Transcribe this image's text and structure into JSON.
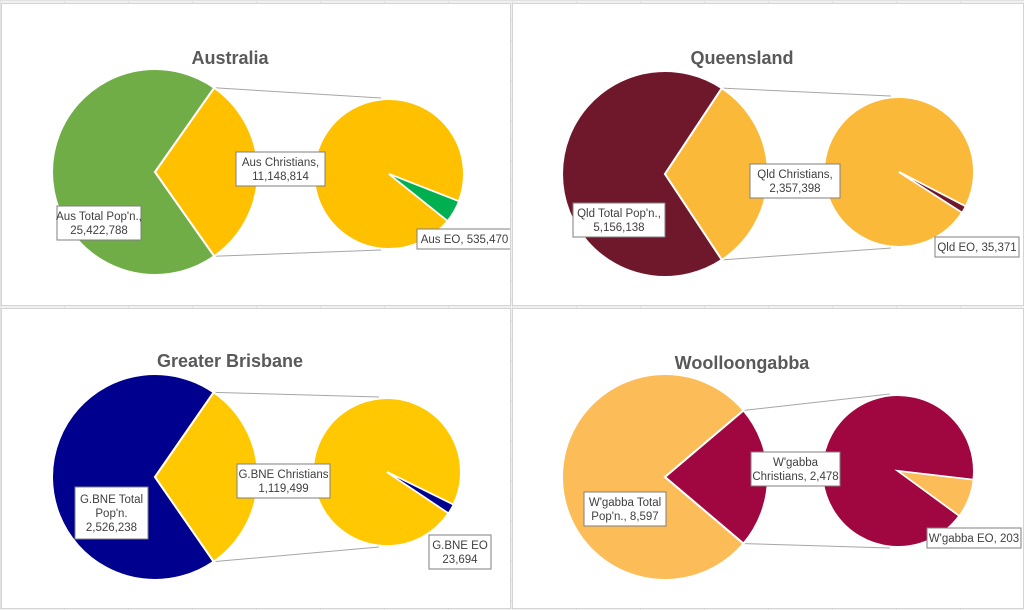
{
  "chart_data": [
    {
      "type": "bar-of-pie",
      "title": "Australia",
      "colors": {
        "total": "#70ad47",
        "christians": "#ffc000",
        "eo": "#00b050"
      },
      "slices": [
        {
          "name": "Aus Total Pop'n.",
          "value": 25422788,
          "label": [
            "Aus Total Pop'n.,",
            "25,422,788"
          ]
        },
        {
          "name": "Aus Christians",
          "value": 11148814,
          "label": [
            "Aus Christians,",
            "11,148,814"
          ]
        },
        {
          "name": "Aus EO",
          "value": 535470,
          "label": [
            "Aus EO, 535,470"
          ]
        }
      ]
    },
    {
      "type": "bar-of-pie",
      "title": "Queensland",
      "colors": {
        "total": "#70182b",
        "christians": "#fbb93a",
        "eo": "#70182b"
      },
      "slices": [
        {
          "name": "Qld Total Pop'n.",
          "value": 5156138,
          "label": [
            "Qld Total Pop'n.,",
            "5,156,138"
          ]
        },
        {
          "name": "Qld Christians",
          "value": 2357398,
          "label": [
            "Qld Christians,",
            "2,357,398"
          ]
        },
        {
          "name": "Qld EO",
          "value": 35371,
          "label": [
            "Qld EO, 35,371"
          ]
        }
      ]
    },
    {
      "type": "bar-of-pie",
      "title": "Greater Brisbane",
      "colors": {
        "total": "#00008f",
        "christians": "#ffc800",
        "eo": "#00008f"
      },
      "slices": [
        {
          "name": "G.BNE Total Pop'n.",
          "value": 2526238,
          "label": [
            "G.BNE Total",
            "Pop'n.",
            "2,526,238"
          ]
        },
        {
          "name": "G.BNE Christians",
          "value": 1119499,
          "label": [
            "G.BNE Christians",
            "1,119,499"
          ]
        },
        {
          "name": "G.BNE EO",
          "value": 23694,
          "label": [
            "G.BNE EO",
            "23,694"
          ]
        }
      ]
    },
    {
      "type": "bar-of-pie",
      "title": "Woolloongabba",
      "colors": {
        "total": "#fcbd58",
        "christians": "#a0063f",
        "eo": "#fcbd58"
      },
      "slices": [
        {
          "name": "W'gabba Total Pop'n.",
          "value": 8597,
          "label": [
            "W'gabba Total",
            "Pop'n., 8,597"
          ]
        },
        {
          "name": "W'gabba Christians",
          "value": 2478,
          "label": [
            "W'gabba",
            "Christians, 2,478"
          ]
        },
        {
          "name": "W'gabba EO",
          "value": 203,
          "label": [
            "W'gabba EO, 203"
          ]
        }
      ]
    }
  ]
}
